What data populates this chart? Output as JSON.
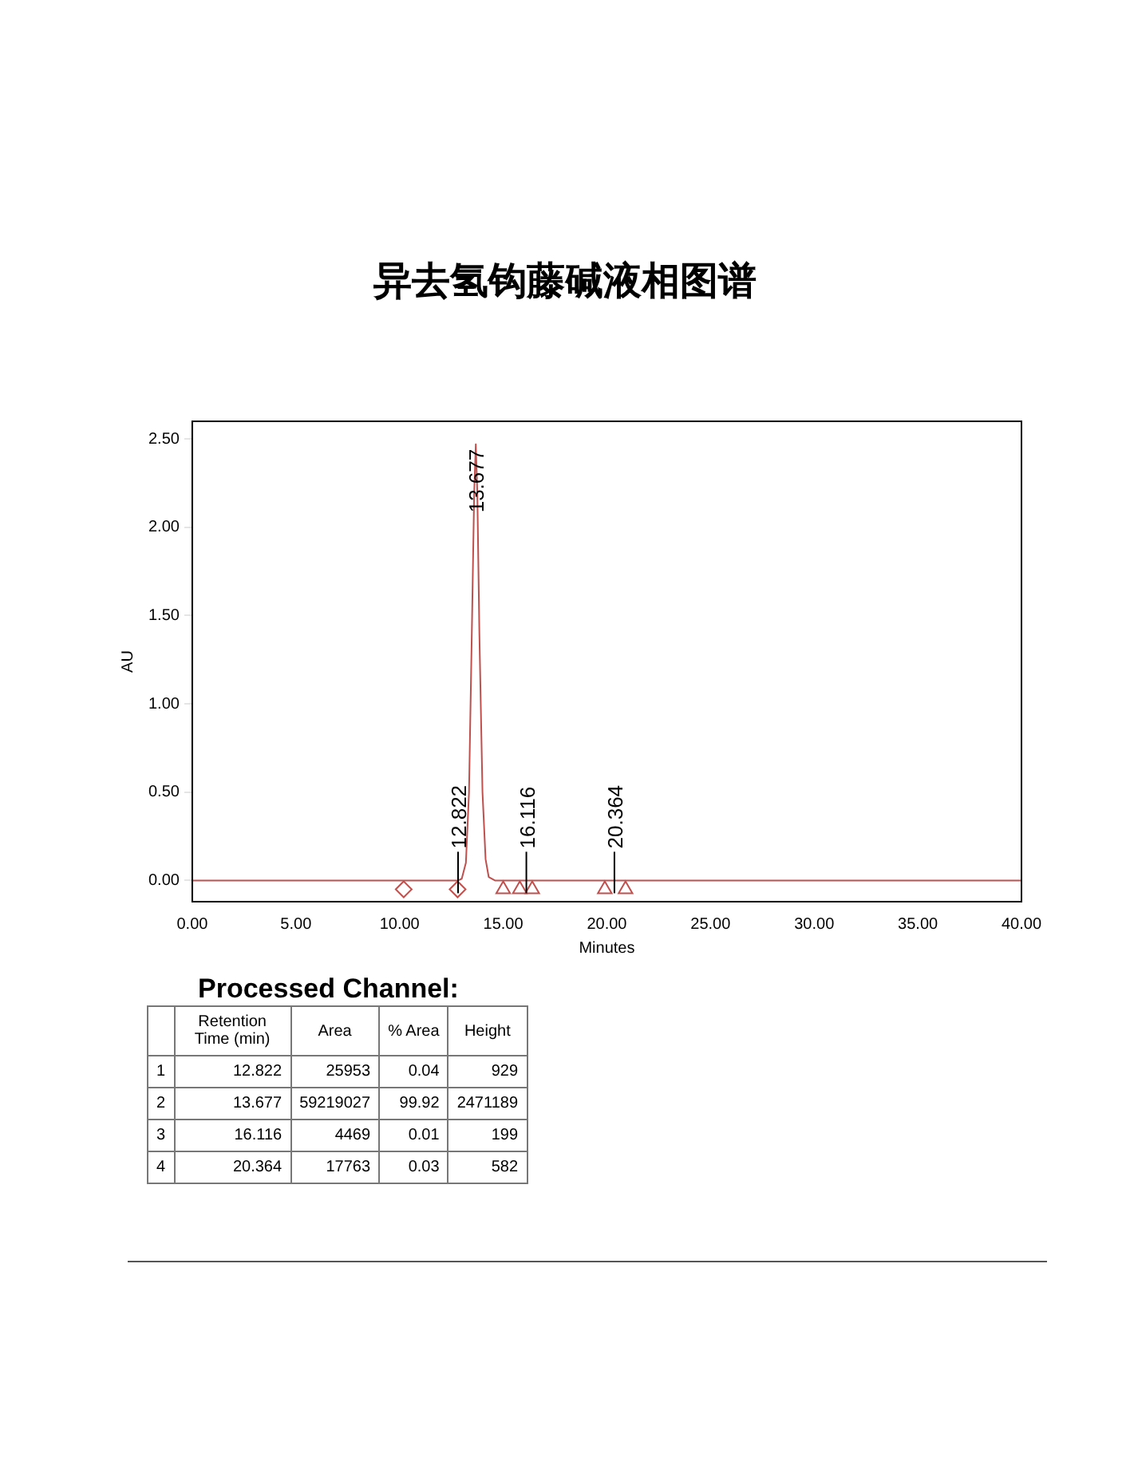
{
  "chart_data": {
    "type": "line",
    "title": "异去氢钩藤碱液相图谱",
    "xlabel": "Minutes",
    "ylabel": "AU",
    "xlim": [
      0,
      40
    ],
    "xticks": [
      {
        "value": 0,
        "label": "0.00"
      },
      {
        "value": 5,
        "label": "5.00"
      },
      {
        "value": 10,
        "label": "10.00"
      },
      {
        "value": 15,
        "label": "15.00"
      },
      {
        "value": 20,
        "label": "20.00"
      },
      {
        "value": 25,
        "label": "25.00"
      },
      {
        "value": 30,
        "label": "30.00"
      },
      {
        "value": 35,
        "label": "35.00"
      },
      {
        "value": 40,
        "label": "40.00"
      }
    ],
    "ylim": [
      -0.12,
      2.6
    ],
    "yticks": [
      {
        "value": 0,
        "label": "0.00"
      },
      {
        "value": 0.5,
        "label": "0.50"
      },
      {
        "value": 1,
        "label": "1.00"
      },
      {
        "value": 1.5,
        "label": "1.50"
      },
      {
        "value": 2,
        "label": "2.00"
      },
      {
        "value": 2.5,
        "label": "2.50"
      }
    ],
    "grid": false,
    "legend": false,
    "series": [
      {
        "color": "#c0504d",
        "marker": "none",
        "x": [
          0,
          5,
          10,
          12.6,
          12.822,
          13.0,
          13.2,
          13.35,
          13.5,
          13.6,
          13.677,
          13.75,
          13.85,
          14.0,
          14.15,
          14.3,
          14.6,
          16.116,
          20.364,
          25,
          30,
          35,
          40
        ],
        "values": [
          0,
          0,
          0,
          0,
          0,
          0.01,
          0.1,
          0.5,
          1.5,
          2.2,
          2.47,
          2.2,
          1.4,
          0.5,
          0.12,
          0.02,
          0,
          0,
          0,
          0,
          0,
          0,
          0
        ]
      },
      {
        "type": "scatter",
        "color": "#c0504d",
        "marker": "diamond",
        "x": [
          10.2,
          12.8
        ],
        "values": [
          -0.05,
          -0.05
        ]
      },
      {
        "type": "scatter",
        "color": "#c0504d",
        "marker": "triangle",
        "x": [
          15.0,
          15.8,
          16.4,
          19.9,
          20.9
        ],
        "values": [
          -0.05,
          -0.05,
          -0.05,
          -0.05,
          -0.05
        ]
      }
    ],
    "annotations": [
      {
        "text": "12.822",
        "x": 12.822,
        "y": 0
      },
      {
        "text": "13.677",
        "x": 13.677,
        "y": 2.47
      },
      {
        "text": "16.116",
        "x": 16.116,
        "y": 0
      },
      {
        "text": "20.364",
        "x": 20.364,
        "y": 0
      },
      "Processed Channel:",
      "Retention Time (min)",
      "Area",
      "% Area",
      "Height",
      "1",
      "12.822",
      "25953",
      "0.04",
      "929",
      "2",
      "13.677",
      "59219027",
      "99.92",
      "2471189",
      "3",
      "16.116",
      "4469",
      "0.01",
      "199",
      "4",
      "20.364",
      "17763",
      "0.03",
      "582"
    ]
  }
}
